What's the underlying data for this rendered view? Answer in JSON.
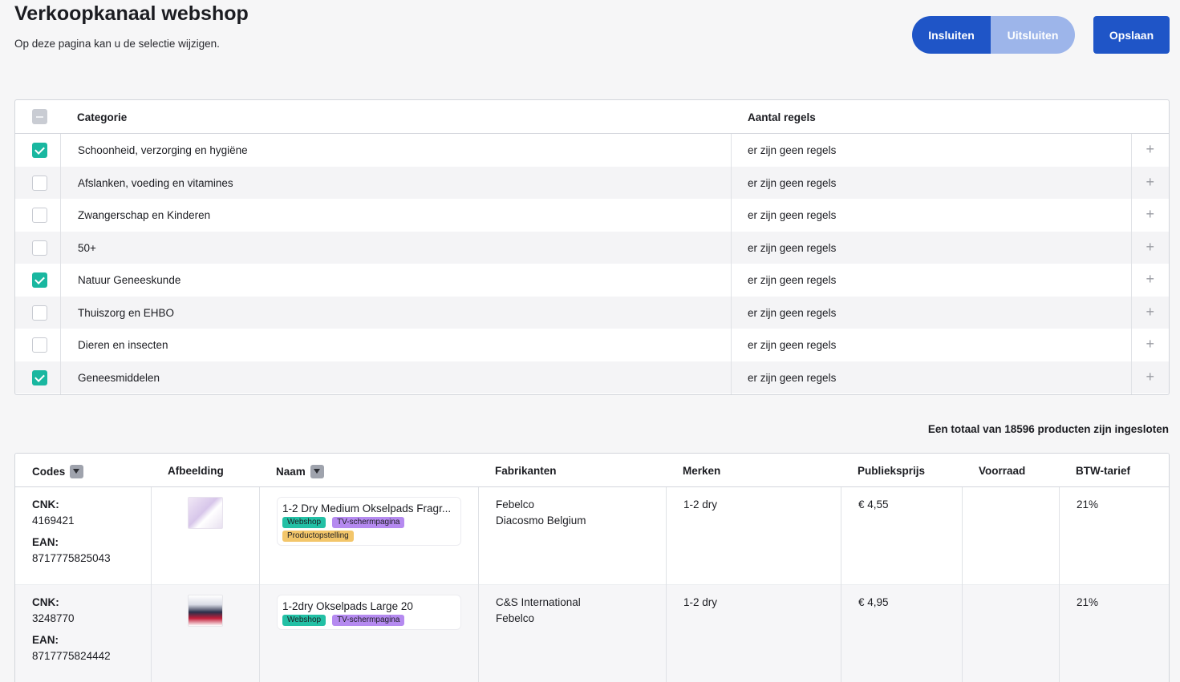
{
  "header": {
    "title": "Verkoopkanaal webshop",
    "subtitle": "Op deze pagina kan u de selectie wijzigen.",
    "include_label": "Insluiten",
    "exclude_label": "Uitsluiten",
    "save_label": "Opslaan"
  },
  "category_table": {
    "columns": [
      "Categorie",
      "Aantal regels"
    ],
    "rows": [
      {
        "name": "Schoonheid, verzorging en hygiëne",
        "rules": "er zijn geen regels",
        "checked": true
      },
      {
        "name": "Afslanken, voeding en vitamines",
        "rules": "er zijn geen regels",
        "checked": false
      },
      {
        "name": "Zwangerschap en Kinderen",
        "rules": "er zijn geen regels",
        "checked": false
      },
      {
        "name": "50+",
        "rules": "er zijn geen regels",
        "checked": false
      },
      {
        "name": "Natuur Geneeskunde",
        "rules": "er zijn geen regels",
        "checked": true
      },
      {
        "name": "Thuiszorg en EHBO",
        "rules": "er zijn geen regels",
        "checked": false
      },
      {
        "name": "Dieren en insecten",
        "rules": "er zijn geen regels",
        "checked": false
      },
      {
        "name": "Geneesmiddelen",
        "rules": "er zijn geen regels",
        "checked": true
      }
    ]
  },
  "total_text": "Een totaal van 18596 producten zijn ingesloten",
  "product_table": {
    "columns": [
      "Codes",
      "Afbeelding",
      "Naam",
      "Fabrikanten",
      "Merken",
      "Publieksprijs",
      "Voorraad",
      "BTW-tarief"
    ],
    "rows": [
      {
        "cnk_label": "CNK:",
        "cnk": "4169421",
        "ean_label": "EAN:",
        "ean": "8717775825043",
        "name": "1-2 Dry Medium Okselpads Fragr...",
        "tags": [
          "Webshop",
          "TV-schermpagina",
          "Productopstelling"
        ],
        "manufacturers": [
          "Febelco",
          "Diacosmo Belgium"
        ],
        "brand": "1-2 dry",
        "price": "€ 4,55",
        "stock": "",
        "vat": "21%"
      },
      {
        "cnk_label": "CNK:",
        "cnk": "3248770",
        "ean_label": "EAN:",
        "ean": "8717775824442",
        "name": "1-2dry Okselpads Large 20",
        "tags": [
          "Webshop",
          "TV-schermpagina"
        ],
        "manufacturers": [
          "C&S International",
          "Febelco"
        ],
        "brand": "1-2 dry",
        "price": "€ 4,95",
        "stock": "",
        "vat": "21%"
      }
    ]
  }
}
